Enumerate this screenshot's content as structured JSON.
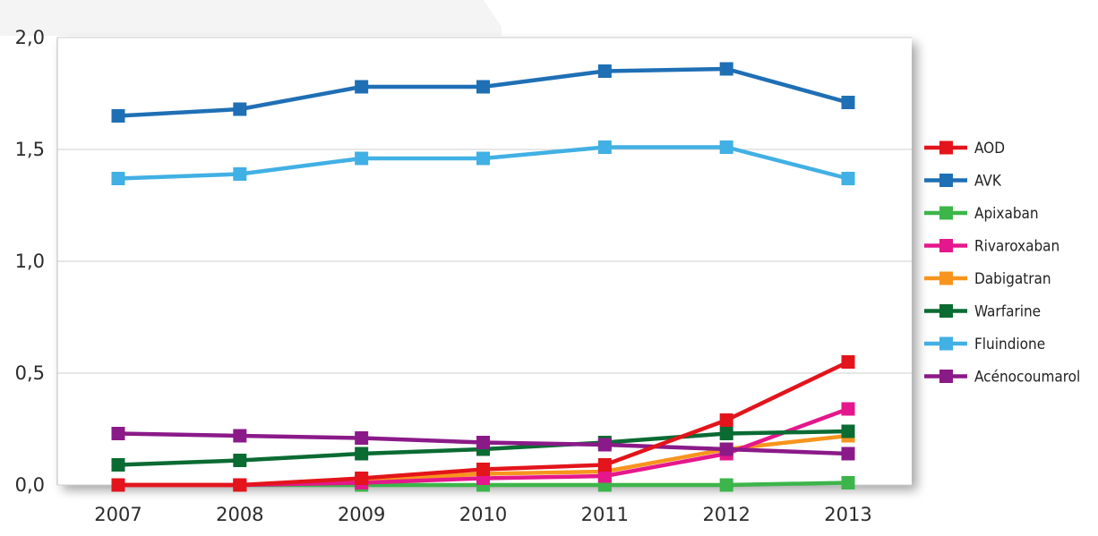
{
  "chart_data": {
    "type": "line",
    "categories": [
      "2007",
      "2008",
      "2009",
      "2010",
      "2011",
      "2012",
      "2013"
    ],
    "y_ticks": [
      "0,0",
      "0,5",
      "1,0",
      "1,5",
      "2,0"
    ],
    "ylim": [
      0,
      2
    ],
    "grid": true,
    "legend_position": "right",
    "series": [
      {
        "name": "AOD",
        "color": "#e3141b",
        "values": [
          0.0,
          0.0,
          0.03,
          0.07,
          0.09,
          0.29,
          0.55
        ]
      },
      {
        "name": "AVK",
        "color": "#1f6fb5",
        "values": [
          1.65,
          1.68,
          1.78,
          1.78,
          1.85,
          1.86,
          1.71
        ]
      },
      {
        "name": "Apixaban",
        "color": "#3cb54a",
        "values": [
          0.0,
          0.0,
          0.0,
          0.0,
          0.0,
          0.0,
          0.01
        ]
      },
      {
        "name": "Rivaroxaban",
        "color": "#e5178c",
        "values": [
          0.0,
          0.0,
          0.01,
          0.03,
          0.04,
          0.14,
          0.34
        ]
      },
      {
        "name": "Dabigatran",
        "color": "#f7941d",
        "values": [
          0.0,
          0.0,
          0.02,
          0.05,
          0.06,
          0.16,
          0.22
        ]
      },
      {
        "name": "Warfarine",
        "color": "#0a6b33",
        "values": [
          0.09,
          0.11,
          0.14,
          0.16,
          0.19,
          0.23,
          0.24
        ]
      },
      {
        "name": "Fluindione",
        "color": "#41b0e4",
        "values": [
          1.37,
          1.39,
          1.46,
          1.46,
          1.51,
          1.51,
          1.37
        ]
      },
      {
        "name": "Acénocoumarol",
        "color": "#8b1a89",
        "values": [
          0.23,
          0.22,
          0.21,
          0.19,
          0.18,
          0.16,
          0.14
        ]
      }
    ]
  }
}
